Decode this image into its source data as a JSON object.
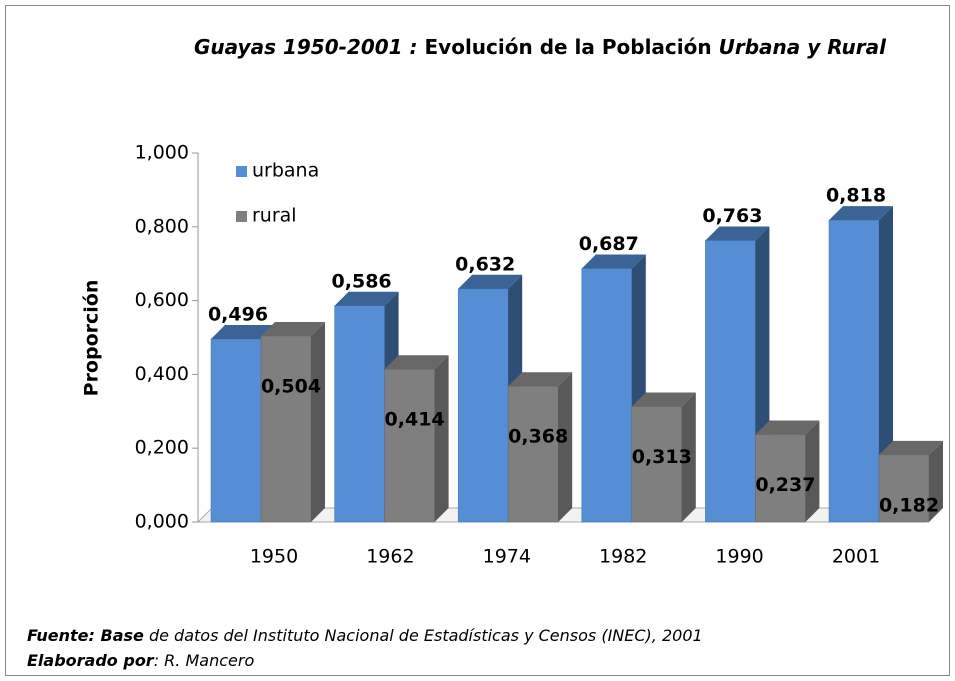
{
  "chart_data": {
    "type": "bar3d",
    "title": [
      "Guayas 1950-2001  :",
      "Evolución de la Población",
      "Urbana y Rural"
    ],
    "ylabel": "Proporción",
    "categories": [
      "1950",
      "1962",
      "1974",
      "1982",
      "1990",
      "2001"
    ],
    "series": [
      {
        "name": "urbana",
        "color": "#558ed5",
        "values": [
          0.496,
          0.586,
          0.632,
          0.687,
          0.763,
          0.818
        ],
        "value_labels": [
          "0,496",
          "0,586",
          "0,632",
          "0,687",
          "0,763",
          "0,818"
        ]
      },
      {
        "name": "rural",
        "color": "#7f7f7f",
        "values": [
          0.504,
          0.414,
          0.368,
          0.313,
          0.237,
          0.182
        ],
        "value_labels": [
          "0,504",
          "0,414",
          "0,368",
          "0,313",
          "0,237",
          "0,182"
        ]
      }
    ],
    "ylim": [
      0,
      1
    ],
    "yticks": [
      {
        "value": 0,
        "label": "0,000"
      },
      {
        "value": 0.2,
        "label": "0,200"
      },
      {
        "value": 0.4,
        "label": "0,400"
      },
      {
        "value": 0.6,
        "label": "0,600"
      },
      {
        "value": 0.8,
        "label": "0,800"
      },
      {
        "value": 1,
        "label": "1,000"
      }
    ],
    "legend": "top-left",
    "source": [
      [
        "Fuente: Base",
        "de datos del  Instituto Nacional de Estadísticas y Censos  (INEC), 2001"
      ],
      [
        "Elaborado por",
        ": R. Mancero"
      ]
    ]
  }
}
